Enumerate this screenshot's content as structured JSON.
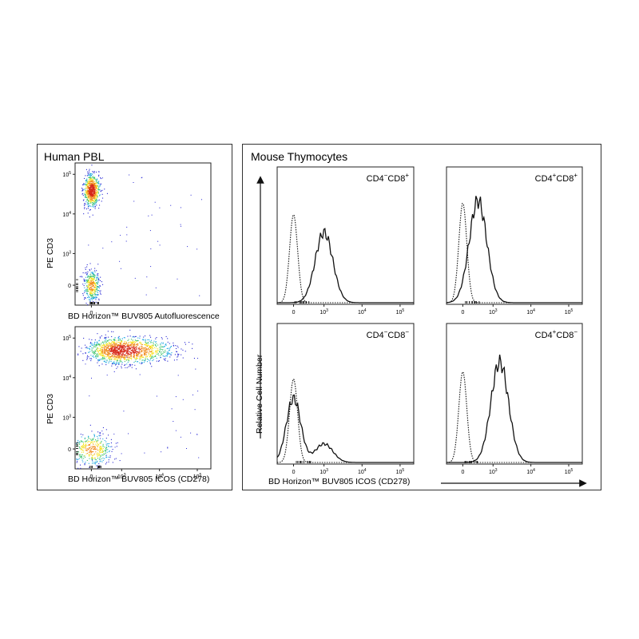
{
  "left_panel": {
    "title": "Human PBL",
    "plots": [
      {
        "ylabel": "PE  CD3",
        "xlabel": "BD Horizon™ BUV805  Autofluorescence"
      },
      {
        "ylabel": "PE  CD3",
        "xlabel": "BD Horizon™ BUV805  ICOS (CD278)"
      }
    ]
  },
  "right_panel": {
    "title": "Mouse Thymocytes",
    "ylabel": "Relative Cell Number",
    "xlabel": "BD Horizon™ BUV805  ICOS (CD278)"
  },
  "colors": {
    "density_high": "#d62718",
    "density_mid": "#f6e21b",
    "density_low": "#2a2ad4",
    "line": "#111111"
  },
  "chart_data": [
    {
      "type": "scatter",
      "title": "Human PBL",
      "xlabel": "BD Horizon™ BUV805  Autofluorescence",
      "ylabel": "PE  CD3",
      "x_scale": "biexponential",
      "y_scale": "biexponential",
      "x_ticks": [
        "0"
      ],
      "y_ticks": [
        "0",
        "10^3",
        "10^4",
        "10^5"
      ],
      "populations": [
        {
          "x_center": 0,
          "y_center": 40000,
          "density": "high"
        },
        {
          "x_center": 0,
          "y_center": 0,
          "density": "medium"
        }
      ]
    },
    {
      "type": "scatter",
      "xlabel": "BD Horizon™ BUV805  ICOS (CD278)",
      "ylabel": "PE  CD3",
      "x_scale": "biexponential",
      "y_scale": "biexponential",
      "x_ticks": [
        "0",
        "10^3",
        "10^4",
        "10^5"
      ],
      "y_ticks": [
        "0",
        "10^3",
        "10^4",
        "10^5"
      ],
      "populations": [
        {
          "x_center": 1000,
          "y_center": 50000,
          "density": "high"
        },
        {
          "x_center": 0,
          "y_center": 0,
          "density": "medium"
        }
      ]
    },
    {
      "type": "line",
      "title": "Mouse Thymocytes",
      "ylabel": "Relative Cell Number",
      "xlabel": "BD Horizon™ BUV805  ICOS (CD278)",
      "x_ticks": [
        "0",
        "10^3",
        "10^4",
        "10^5"
      ],
      "panels": [
        {
          "label_main1": "CD4",
          "sup1": "−",
          "label_main2": "CD8",
          "sup2": "+",
          "series": [
            {
              "style": "dotted",
              "peak_x": 0,
              "height": 0.78
            },
            {
              "style": "solid",
              "peak_x": 1000,
              "height": 0.62
            }
          ]
        },
        {
          "label_main1": "CD4",
          "sup1": "+",
          "label_main2": "CD8",
          "sup2": "+",
          "series": [
            {
              "style": "dotted",
              "peak_x": 0,
              "height": 0.88
            },
            {
              "style": "solid",
              "peak_x": 400,
              "height": 0.9
            }
          ]
        },
        {
          "label_main1": "CD4",
          "sup1": "−",
          "label_main2": "CD8",
          "sup2": "−",
          "series": [
            {
              "style": "dotted",
              "peak_x": 0,
              "height": 0.72
            },
            {
              "style": "solid",
              "peak_x": 0,
              "height": 0.55
            },
            {
              "style": "solid",
              "peak_x": 1000,
              "height": 0.16
            }
          ]
        },
        {
          "label_main1": "CD4",
          "sup1": "+",
          "label_main2": "CD8",
          "sup2": "−",
          "series": [
            {
              "style": "dotted",
              "peak_x": 0,
              "height": 0.78
            },
            {
              "style": "solid",
              "peak_x": 1500,
              "height": 0.86
            }
          ]
        }
      ]
    }
  ]
}
